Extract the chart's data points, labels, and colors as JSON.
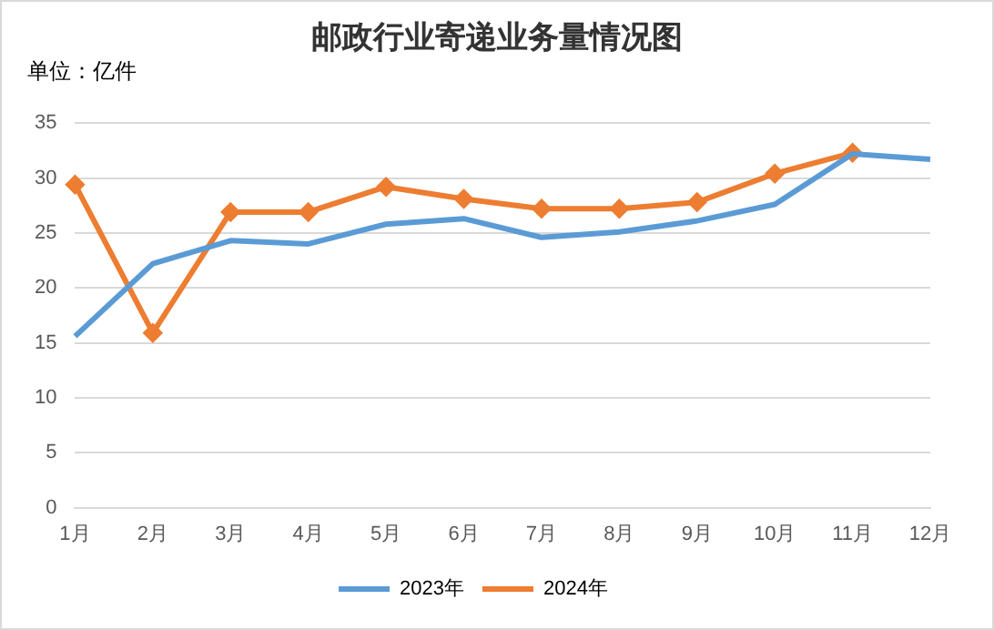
{
  "chart_data": {
    "type": "line",
    "title": "邮政行业寄递业务量情况图",
    "ylabel": "单位：亿件",
    "categories": [
      "1月",
      "2月",
      "3月",
      "4月",
      "5月",
      "6月",
      "7月",
      "8月",
      "9月",
      "10月",
      "11月",
      "12月"
    ],
    "series": [
      {
        "name": "2023年",
        "color": "#5b9bd5",
        "marker": "none",
        "values": [
          15.6,
          22.2,
          24.3,
          24.0,
          25.8,
          26.3,
          24.6,
          25.1,
          26.1,
          27.6,
          32.2,
          31.7
        ]
      },
      {
        "name": "2024年",
        "color": "#ed7d31",
        "marker": "diamond",
        "values": [
          29.4,
          15.9,
          26.9,
          26.9,
          29.2,
          28.1,
          27.2,
          27.2,
          27.8,
          30.4,
          32.3,
          null
        ]
      }
    ],
    "ylim": [
      0,
      35
    ],
    "yticks": [
      0,
      5,
      10,
      15,
      20,
      25,
      30,
      35
    ],
    "grid": "y",
    "legend": "bottom",
    "line_style": "solid"
  }
}
